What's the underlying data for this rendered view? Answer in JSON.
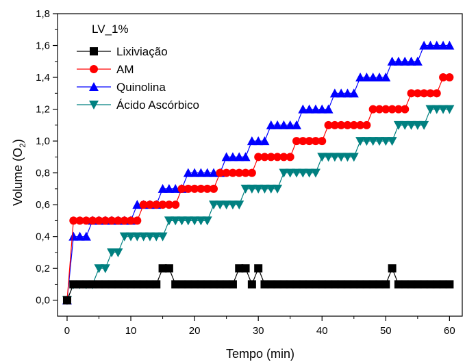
{
  "chart_data": {
    "type": "line",
    "annotation": "LV_1%",
    "xlabel": "Tempo (min)",
    "ylabel_main": "Volume (O",
    "ylabel_sub": "2",
    "ylabel_close": ")",
    "xlim": [
      -1.5,
      62
    ],
    "ylim": [
      -0.1,
      1.8
    ],
    "xticks": [
      0,
      10,
      20,
      30,
      40,
      50,
      60
    ],
    "yticks": [
      "0,0",
      "0,2",
      "0,4",
      "0,6",
      "0,8",
      "1,0",
      "1,2",
      "1,4",
      "1,6",
      "1,8"
    ],
    "ytick_values": [
      0,
      0.2,
      0.4,
      0.6,
      0.8,
      1.0,
      1.2,
      1.4,
      1.6,
      1.8
    ],
    "legend_position": "top-left",
    "series": [
      {
        "name": "Lixiviação",
        "color": "#000000",
        "marker": "square",
        "x": [
          0,
          1,
          2,
          3,
          4,
          5,
          6,
          7,
          8,
          9,
          10,
          11,
          12,
          13,
          14,
          15,
          16,
          17,
          18,
          19,
          20,
          21,
          22,
          23,
          24,
          25,
          26,
          27,
          28,
          29,
          30,
          31,
          32,
          33,
          34,
          35,
          36,
          37,
          38,
          39,
          40,
          41,
          42,
          43,
          44,
          45,
          46,
          47,
          48,
          49,
          50,
          51,
          52,
          53,
          54,
          55,
          56,
          57,
          58,
          59,
          60
        ],
        "y": [
          0,
          0.1,
          0.1,
          0.1,
          0.1,
          0.1,
          0.1,
          0.1,
          0.1,
          0.1,
          0.1,
          0.1,
          0.1,
          0.1,
          0.1,
          0.2,
          0.2,
          0.1,
          0.1,
          0.1,
          0.1,
          0.1,
          0.1,
          0.1,
          0.1,
          0.1,
          0.1,
          0.2,
          0.2,
          0.1,
          0.2,
          0.1,
          0.1,
          0.1,
          0.1,
          0.1,
          0.1,
          0.1,
          0.1,
          0.1,
          0.1,
          0.1,
          0.1,
          0.1,
          0.1,
          0.1,
          0.1,
          0.1,
          0.1,
          0.1,
          0.1,
          0.2,
          0.1,
          0.1,
          0.1,
          0.1,
          0.1,
          0.1,
          0.1,
          0.1,
          0.1
        ]
      },
      {
        "name": "AM",
        "color": "#ff0000",
        "marker": "circle",
        "x": [
          0,
          1,
          2,
          3,
          4,
          5,
          6,
          7,
          8,
          9,
          10,
          11,
          12,
          13,
          14,
          15,
          16,
          17,
          18,
          19,
          20,
          21,
          22,
          23,
          24,
          25,
          26,
          27,
          28,
          29,
          30,
          31,
          32,
          33,
          34,
          35,
          36,
          37,
          38,
          39,
          40,
          41,
          42,
          43,
          44,
          45,
          46,
          47,
          48,
          49,
          50,
          51,
          52,
          53,
          54,
          55,
          56,
          57,
          58,
          59,
          60
        ],
        "y": [
          0,
          0.5,
          0.5,
          0.5,
          0.5,
          0.5,
          0.5,
          0.5,
          0.5,
          0.5,
          0.5,
          0.5,
          0.6,
          0.6,
          0.6,
          0.6,
          0.6,
          0.6,
          0.7,
          0.7,
          0.7,
          0.7,
          0.7,
          0.7,
          0.8,
          0.8,
          0.8,
          0.8,
          0.8,
          0.8,
          0.9,
          0.9,
          0.9,
          0.9,
          0.9,
          0.9,
          1.0,
          1.0,
          1.0,
          1.0,
          1.0,
          1.1,
          1.1,
          1.1,
          1.1,
          1.1,
          1.1,
          1.1,
          1.2,
          1.2,
          1.2,
          1.2,
          1.2,
          1.2,
          1.3,
          1.3,
          1.3,
          1.3,
          1.3,
          1.4,
          1.4
        ]
      },
      {
        "name": "Quinolina",
        "color": "#0000ff",
        "marker": "triangle-up",
        "x": [
          0,
          1,
          2,
          3,
          4,
          5,
          6,
          7,
          8,
          9,
          10,
          11,
          12,
          13,
          14,
          15,
          16,
          17,
          18,
          19,
          20,
          21,
          22,
          23,
          24,
          25,
          26,
          27,
          28,
          29,
          30,
          31,
          32,
          33,
          34,
          35,
          36,
          37,
          38,
          39,
          40,
          41,
          42,
          43,
          44,
          45,
          46,
          47,
          48,
          49,
          50,
          51,
          52,
          53,
          54,
          55,
          56,
          57,
          58,
          59,
          60
        ],
        "y": [
          0,
          0.4,
          0.4,
          0.4,
          0.5,
          0.5,
          0.5,
          0.5,
          0.5,
          0.5,
          0.5,
          0.6,
          0.6,
          0.6,
          0.6,
          0.7,
          0.7,
          0.7,
          0.7,
          0.8,
          0.8,
          0.8,
          0.8,
          0.8,
          0.8,
          0.9,
          0.9,
          0.9,
          0.9,
          1.0,
          1.0,
          1.0,
          1.1,
          1.1,
          1.1,
          1.1,
          1.1,
          1.2,
          1.2,
          1.2,
          1.2,
          1.2,
          1.3,
          1.3,
          1.3,
          1.3,
          1.4,
          1.4,
          1.4,
          1.4,
          1.4,
          1.5,
          1.5,
          1.5,
          1.5,
          1.5,
          1.6,
          1.6,
          1.6,
          1.6,
          1.6
        ]
      },
      {
        "name": "Ácido Ascórbico",
        "color": "#008080",
        "marker": "triangle-down",
        "x": [
          0,
          1,
          2,
          3,
          4,
          5,
          6,
          7,
          8,
          9,
          10,
          11,
          12,
          13,
          14,
          15,
          16,
          17,
          18,
          19,
          20,
          21,
          22,
          23,
          24,
          25,
          26,
          27,
          28,
          29,
          30,
          31,
          32,
          33,
          34,
          35,
          36,
          37,
          38,
          39,
          40,
          41,
          42,
          43,
          44,
          45,
          46,
          47,
          48,
          49,
          50,
          51,
          52,
          53,
          54,
          55,
          56,
          57,
          58,
          59,
          60
        ],
        "y": [
          0,
          0.1,
          0.1,
          0.1,
          0.1,
          0.2,
          0.2,
          0.3,
          0.3,
          0.4,
          0.4,
          0.4,
          0.4,
          0.4,
          0.4,
          0.4,
          0.5,
          0.5,
          0.5,
          0.5,
          0.5,
          0.5,
          0.5,
          0.6,
          0.6,
          0.6,
          0.6,
          0.6,
          0.7,
          0.7,
          0.7,
          0.7,
          0.7,
          0.7,
          0.8,
          0.8,
          0.8,
          0.8,
          0.8,
          0.8,
          0.9,
          0.9,
          0.9,
          0.9,
          0.9,
          0.9,
          1.0,
          1.0,
          1.0,
          1.0,
          1.0,
          1.0,
          1.1,
          1.1,
          1.1,
          1.1,
          1.1,
          1.2,
          1.2,
          1.2,
          1.2
        ]
      }
    ]
  }
}
